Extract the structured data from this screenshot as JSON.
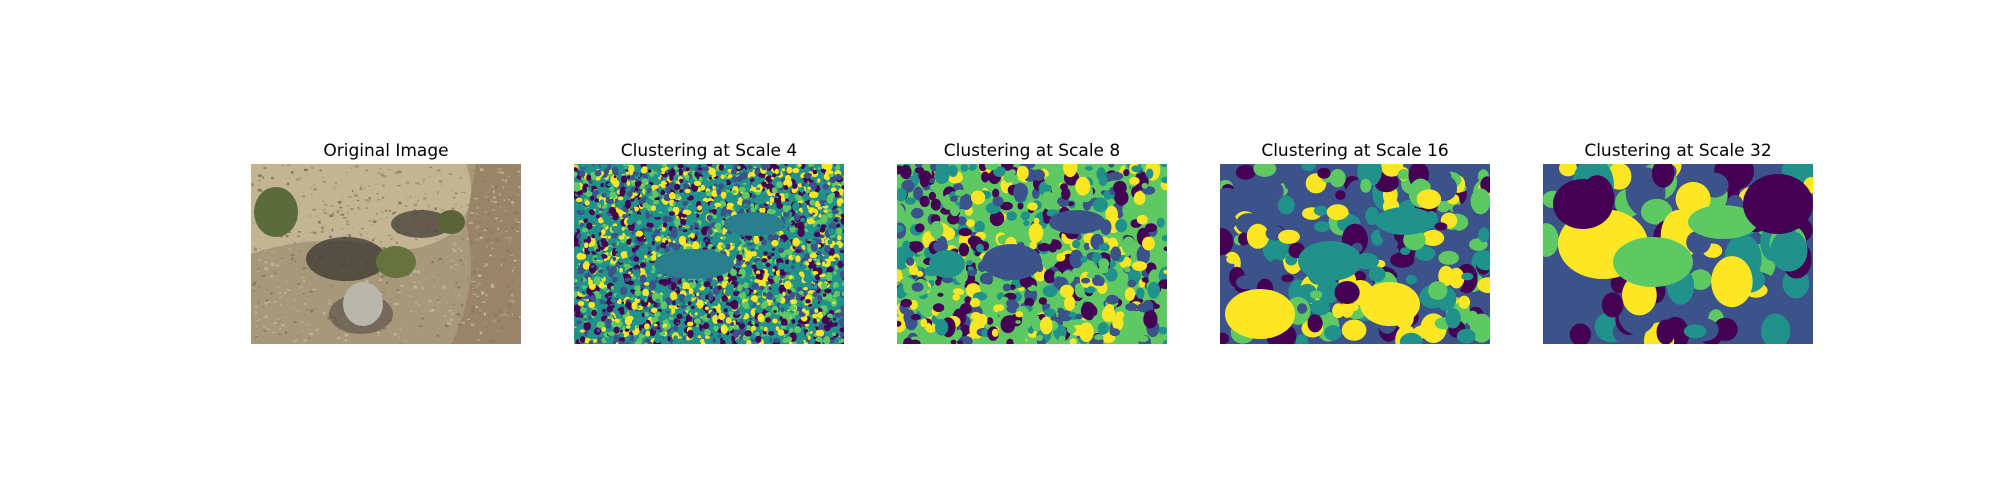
{
  "figure": {
    "panels": [
      {
        "title": "Original Image"
      },
      {
        "title": "Clustering at Scale 4"
      },
      {
        "title": "Clustering at Scale 8"
      },
      {
        "title": "Clustering at Scale 16"
      },
      {
        "title": "Clustering at Scale 32"
      }
    ],
    "palette": [
      "#440154",
      "#3b528b",
      "#21918c",
      "#5ec962",
      "#fde725"
    ],
    "ground_colors": [
      "#b8a886",
      "#a89878",
      "#9e8b6c",
      "#c2b290",
      "#8a7860"
    ]
  }
}
